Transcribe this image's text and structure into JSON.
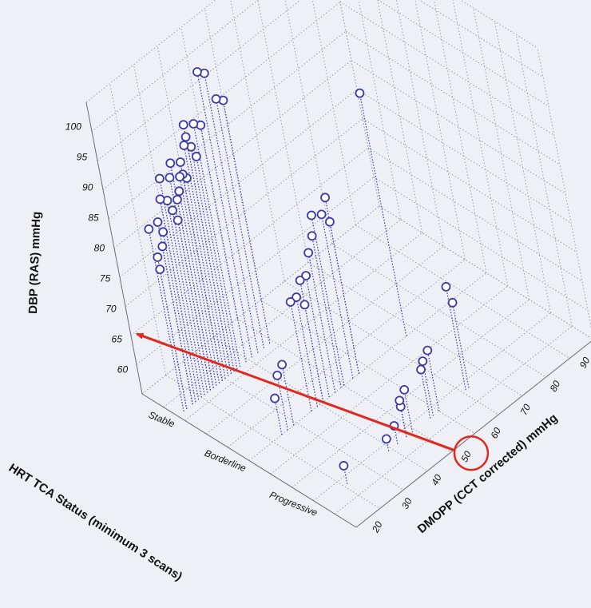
{
  "chart_data": {
    "type": "scatter",
    "dimensions": "3d",
    "title": "",
    "x_axis": {
      "label": "HRT TCA Status (minimum 3 scans)",
      "categories": [
        "Stable",
        "Borderline",
        "Progressive"
      ]
    },
    "y_axis": {
      "label": "DMOPP (CCT corrected) mmHg",
      "ticks": [
        20,
        30,
        40,
        50,
        60,
        70,
        80,
        90
      ],
      "range": [
        15,
        95
      ]
    },
    "z_axis": {
      "label": "DBP (RAS) mmHg",
      "ticks": [
        60,
        65,
        70,
        75,
        80,
        85,
        90,
        95,
        100
      ],
      "range": [
        56,
        104
      ]
    },
    "grid": true,
    "marker": "open-circle",
    "colors": {
      "points": "#3a3aa8",
      "stems": "#3a3aa8",
      "annotation": "#e0281c",
      "grid": "#9aa0aa"
    },
    "points": [
      {
        "x": "Stable",
        "y": 40,
        "z": 103
      },
      {
        "x": "Stable",
        "y": 42,
        "z": 102
      },
      {
        "x": "Stable",
        "y": 44,
        "z": 97
      },
      {
        "x": "Stable",
        "y": 46,
        "z": 96
      },
      {
        "x": "Stable",
        "y": 38,
        "z": 95
      },
      {
        "x": "Stable",
        "y": 36,
        "z": 96
      },
      {
        "x": "Stable",
        "y": 34,
        "z": 93
      },
      {
        "x": "Stable",
        "y": 33,
        "z": 95
      },
      {
        "x": "Stable",
        "y": 32,
        "z": 94
      },
      {
        "x": "Stable",
        "y": 30,
        "z": 92
      },
      {
        "x": "Stable",
        "y": 30,
        "z": 90
      },
      {
        "x": "Stable",
        "y": 28,
        "z": 88
      },
      {
        "x": "Stable",
        "y": 26,
        "z": 91
      },
      {
        "x": "Stable",
        "y": 27,
        "z": 87
      },
      {
        "x": "Stable",
        "y": 25,
        "z": 86
      },
      {
        "x": "Stable",
        "y": 24,
        "z": 88
      },
      {
        "x": "Stable",
        "y": 22,
        "z": 89
      },
      {
        "x": "Stable",
        "y": 21,
        "z": 84
      },
      {
        "x": "Stable",
        "y": 20,
        "z": 82
      },
      {
        "x": "Stable",
        "y": 20,
        "z": 86
      },
      {
        "x": "Stable",
        "y": 18,
        "z": 81
      },
      {
        "x": "Stable",
        "y": 18,
        "z": 79
      },
      {
        "x": "Stable",
        "y": 17,
        "z": 86
      },
      {
        "x": "Stable",
        "y": 35,
        "z": 91
      },
      {
        "x": "Stable",
        "y": 31,
        "z": 89
      },
      {
        "x": "Stable",
        "y": 29,
        "z": 90
      },
      {
        "x": "Stable",
        "y": 27,
        "z": 93
      },
      {
        "x": "Stable",
        "y": 23,
        "z": 92
      },
      {
        "x": "Stable",
        "y": 33,
        "z": 97
      },
      {
        "x": "Stable",
        "y": 26,
        "z": 84
      },
      {
        "x": "Borderline",
        "y": 68,
        "z": 96
      },
      {
        "x": "Borderline",
        "y": 52,
        "z": 85
      },
      {
        "x": "Borderline",
        "y": 50,
        "z": 83
      },
      {
        "x": "Borderline",
        "y": 47,
        "z": 84
      },
      {
        "x": "Borderline",
        "y": 46,
        "z": 81
      },
      {
        "x": "Borderline",
        "y": 44,
        "z": 79
      },
      {
        "x": "Borderline",
        "y": 52,
        "z": 81
      },
      {
        "x": "Borderline",
        "y": 42,
        "z": 76
      },
      {
        "x": "Borderline",
        "y": 40,
        "z": 76
      },
      {
        "x": "Borderline",
        "y": 38,
        "z": 74
      },
      {
        "x": "Borderline",
        "y": 36,
        "z": 74
      },
      {
        "x": "Borderline",
        "y": 40,
        "z": 72
      },
      {
        "x": "Borderline",
        "y": 30,
        "z": 66
      },
      {
        "x": "Borderline",
        "y": 28,
        "z": 65
      },
      {
        "x": "Borderline",
        "y": 26,
        "z": 62
      },
      {
        "x": "Progressive",
        "y": 64,
        "z": 73
      },
      {
        "x": "Progressive",
        "y": 65,
        "z": 70
      },
      {
        "x": "Progressive",
        "y": 55,
        "z": 66
      },
      {
        "x": "Progressive",
        "y": 53,
        "z": 65
      },
      {
        "x": "Progressive",
        "y": 52,
        "z": 64
      },
      {
        "x": "Progressive",
        "y": 46,
        "z": 63
      },
      {
        "x": "Progressive",
        "y": 44,
        "z": 61
      },
      {
        "x": "Progressive",
        "y": 44,
        "z": 62
      },
      {
        "x": "Progressive",
        "y": 41,
        "z": 59
      },
      {
        "x": "Progressive",
        "y": 38,
        "z": 58
      },
      {
        "x": "Progressive",
        "y": 24,
        "z": 59
      }
    ],
    "annotations": [
      {
        "type": "circle",
        "around_tick": "50",
        "axis": "y"
      },
      {
        "type": "arrow",
        "from_tick": "50",
        "toward": "DBP axis near 65"
      }
    ]
  }
}
